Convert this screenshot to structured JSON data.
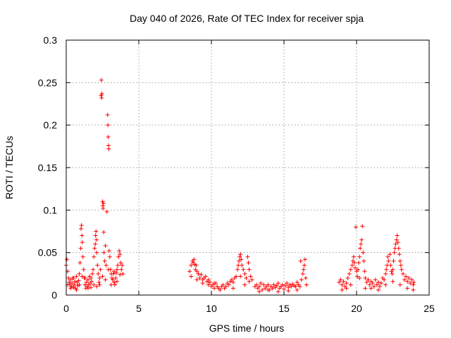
{
  "chart_data": {
    "type": "scatter",
    "title": "Day 040 of 2026, Rate Of TEC Index for receiver spja",
    "xlabel": "GPS time / hours",
    "ylabel": "ROTI / TECUs",
    "xlim": [
      0,
      25
    ],
    "ylim": [
      0,
      0.3
    ],
    "x_ticks": [
      0,
      5,
      10,
      15,
      20,
      25
    ],
    "x_tick_labels": [
      "0",
      "5",
      "10",
      "15",
      "20",
      "25"
    ],
    "y_ticks": [
      0,
      0.05,
      0.1,
      0.15,
      0.2,
      0.25,
      0.3
    ],
    "y_tick_labels": [
      "0",
      "0.05",
      "0.1",
      "0.15",
      "0.2",
      "0.25",
      "0.3"
    ],
    "grid": true,
    "marker": "plus",
    "series": [
      {
        "name": "ROTI",
        "color": "#ff0000",
        "points": [
          [
            0.0,
            0.035
          ],
          [
            0.05,
            0.042
          ],
          [
            0.1,
            0.028
          ],
          [
            0.15,
            0.02
          ],
          [
            0.2,
            0.015
          ],
          [
            0.25,
            0.012
          ],
          [
            0.3,
            0.018
          ],
          [
            0.35,
            0.01
          ],
          [
            0.4,
            0.014
          ],
          [
            0.45,
            0.02
          ],
          [
            0.5,
            0.009
          ],
          [
            0.55,
            0.012
          ],
          [
            0.6,
            0.016
          ],
          [
            0.65,
            0.008
          ],
          [
            0.7,
            0.022
          ],
          [
            0.75,
            0.015
          ],
          [
            0.8,
            0.011
          ],
          [
            0.85,
            0.017
          ],
          [
            0.9,
            0.025
          ],
          [
            0.95,
            0.038
          ],
          [
            1.0,
            0.055
          ],
          [
            1.02,
            0.078
          ],
          [
            1.05,
            0.082
          ],
          [
            1.08,
            0.07
          ],
          [
            1.1,
            0.062
          ],
          [
            1.15,
            0.045
          ],
          [
            1.2,
            0.03
          ],
          [
            1.25,
            0.02
          ],
          [
            1.3,
            0.012
          ],
          [
            1.35,
            0.008
          ],
          [
            1.4,
            0.015
          ],
          [
            1.45,
            0.01
          ],
          [
            1.5,
            0.018
          ],
          [
            1.55,
            0.012
          ],
          [
            1.6,
            0.022
          ],
          [
            1.65,
            0.014
          ],
          [
            1.7,
            0.009
          ],
          [
            1.75,
            0.016
          ],
          [
            1.8,
            0.025
          ],
          [
            1.85,
            0.03
          ],
          [
            1.9,
            0.045
          ],
          [
            1.95,
            0.055
          ],
          [
            2.0,
            0.06
          ],
          [
            2.02,
            0.07
          ],
          [
            2.05,
            0.075
          ],
          [
            2.08,
            0.065
          ],
          [
            2.1,
            0.05
          ],
          [
            2.15,
            0.035
          ],
          [
            2.2,
            0.025
          ],
          [
            2.25,
            0.015
          ],
          [
            2.3,
            0.02
          ],
          [
            2.35,
            0.03
          ],
          [
            2.4,
            0.235
          ],
          [
            2.42,
            0.253
          ],
          [
            2.44,
            0.232
          ],
          [
            2.46,
            0.237
          ],
          [
            2.5,
            0.11
          ],
          [
            2.52,
            0.105
          ],
          [
            2.54,
            0.102
          ],
          [
            2.56,
            0.108
          ],
          [
            2.58,
            0.074
          ],
          [
            2.6,
            0.05
          ],
          [
            2.65,
            0.04
          ],
          [
            2.7,
            0.058
          ],
          [
            2.75,
            0.035
          ],
          [
            2.8,
            0.098
          ],
          [
            2.85,
            0.212
          ],
          [
            2.87,
            0.2
          ],
          [
            2.89,
            0.186
          ],
          [
            2.91,
            0.176
          ],
          [
            2.93,
            0.172
          ],
          [
            2.95,
            0.052
          ],
          [
            3.0,
            0.045
          ],
          [
            3.05,
            0.03
          ],
          [
            3.1,
            0.025
          ],
          [
            3.15,
            0.02
          ],
          [
            3.2,
            0.018
          ],
          [
            3.25,
            0.025
          ],
          [
            3.3,
            0.015
          ],
          [
            3.35,
            0.012
          ],
          [
            3.4,
            0.02
          ],
          [
            3.45,
            0.026
          ],
          [
            3.5,
            0.03
          ],
          [
            3.55,
            0.035
          ],
          [
            3.6,
            0.045
          ],
          [
            3.65,
            0.052
          ],
          [
            3.7,
            0.048
          ],
          [
            3.75,
            0.038
          ],
          [
            3.8,
            0.03
          ],
          [
            3.85,
            0.035
          ],
          [
            3.9,
            0.025
          ],
          [
            0.1,
            0.012
          ],
          [
            0.3,
            0.008
          ],
          [
            0.5,
            0.02
          ],
          [
            0.7,
            0.006
          ],
          [
            0.9,
            0.012
          ],
          [
            1.1,
            0.022
          ],
          [
            1.3,
            0.02
          ],
          [
            1.5,
            0.008
          ],
          [
            1.7,
            0.02
          ],
          [
            1.9,
            0.012
          ],
          [
            2.1,
            0.01
          ],
          [
            2.3,
            0.012
          ],
          [
            2.5,
            0.022
          ],
          [
            2.7,
            0.018
          ],
          [
            2.9,
            0.03
          ],
          [
            3.1,
            0.012
          ],
          [
            3.3,
            0.028
          ],
          [
            3.5,
            0.016
          ],
          [
            3.7,
            0.024
          ],
          [
            8.5,
            0.028
          ],
          [
            8.6,
            0.035
          ],
          [
            8.7,
            0.04
          ],
          [
            8.75,
            0.038
          ],
          [
            8.8,
            0.042
          ],
          [
            8.85,
            0.036
          ],
          [
            8.9,
            0.03
          ],
          [
            8.95,
            0.035
          ],
          [
            9.0,
            0.028
          ],
          [
            9.1,
            0.025
          ],
          [
            9.2,
            0.02
          ],
          [
            9.3,
            0.024
          ],
          [
            9.4,
            0.018
          ],
          [
            9.5,
            0.02
          ],
          [
            9.6,
            0.022
          ],
          [
            9.7,
            0.016
          ],
          [
            9.8,
            0.012
          ],
          [
            9.9,
            0.015
          ],
          [
            10.0,
            0.01
          ],
          [
            10.1,
            0.012
          ],
          [
            10.2,
            0.008
          ],
          [
            10.3,
            0.014
          ],
          [
            10.4,
            0.01
          ],
          [
            10.5,
            0.008
          ],
          [
            10.6,
            0.006
          ],
          [
            10.7,
            0.01
          ],
          [
            10.8,
            0.012
          ],
          [
            10.9,
            0.008
          ],
          [
            11.0,
            0.01
          ],
          [
            11.1,
            0.014
          ],
          [
            11.2,
            0.012
          ],
          [
            11.3,
            0.016
          ],
          [
            11.4,
            0.018
          ],
          [
            11.5,
            0.015
          ],
          [
            11.6,
            0.02
          ],
          [
            11.7,
            0.022
          ],
          [
            11.8,
            0.03
          ],
          [
            11.85,
            0.035
          ],
          [
            11.9,
            0.04
          ],
          [
            11.95,
            0.045
          ],
          [
            12.0,
            0.048
          ],
          [
            12.05,
            0.042
          ],
          [
            12.1,
            0.035
          ],
          [
            12.2,
            0.03
          ],
          [
            12.3,
            0.025
          ],
          [
            12.4,
            0.02
          ],
          [
            12.5,
            0.045
          ],
          [
            12.55,
            0.038
          ],
          [
            12.6,
            0.03
          ],
          [
            12.7,
            0.022
          ],
          [
            12.8,
            0.018
          ],
          [
            8.6,
            0.022
          ],
          [
            9.0,
            0.018
          ],
          [
            9.4,
            0.014
          ],
          [
            9.8,
            0.018
          ],
          [
            10.2,
            0.014
          ],
          [
            11.5,
            0.008
          ],
          [
            12.0,
            0.022
          ],
          [
            12.3,
            0.012
          ],
          [
            12.6,
            0.016
          ],
          [
            13.0,
            0.01
          ],
          [
            13.1,
            0.012
          ],
          [
            13.2,
            0.008
          ],
          [
            13.3,
            0.01
          ],
          [
            13.4,
            0.014
          ],
          [
            13.5,
            0.006
          ],
          [
            13.6,
            0.012
          ],
          [
            13.7,
            0.008
          ],
          [
            13.8,
            0.01
          ],
          [
            13.9,
            0.012
          ],
          [
            14.0,
            0.006
          ],
          [
            14.1,
            0.01
          ],
          [
            14.2,
            0.008
          ],
          [
            14.3,
            0.012
          ],
          [
            14.4,
            0.009
          ],
          [
            14.5,
            0.011
          ],
          [
            14.6,
            0.014
          ],
          [
            14.7,
            0.008
          ],
          [
            14.8,
            0.01
          ],
          [
            14.9,
            0.012
          ],
          [
            15.0,
            0.007
          ],
          [
            15.1,
            0.011
          ],
          [
            15.2,
            0.014
          ],
          [
            15.3,
            0.009
          ],
          [
            15.4,
            0.012
          ],
          [
            15.5,
            0.01
          ],
          [
            15.6,
            0.013
          ],
          [
            15.7,
            0.011
          ],
          [
            15.8,
            0.01
          ],
          [
            15.9,
            0.015
          ],
          [
            16.0,
            0.012
          ],
          [
            16.1,
            0.01
          ],
          [
            16.15,
            0.04
          ],
          [
            16.2,
            0.018
          ],
          [
            16.3,
            0.025
          ],
          [
            16.35,
            0.03
          ],
          [
            16.4,
            0.035
          ],
          [
            16.45,
            0.042
          ],
          [
            16.5,
            0.02
          ],
          [
            16.55,
            0.012
          ],
          [
            13.3,
            0.004
          ],
          [
            13.9,
            0.006
          ],
          [
            14.6,
            0.004
          ],
          [
            15.3,
            0.005
          ],
          [
            15.9,
            0.006
          ],
          [
            18.8,
            0.015
          ],
          [
            18.9,
            0.018
          ],
          [
            19.0,
            0.012
          ],
          [
            19.1,
            0.016
          ],
          [
            19.2,
            0.01
          ],
          [
            19.3,
            0.014
          ],
          [
            19.4,
            0.02
          ],
          [
            19.5,
            0.025
          ],
          [
            19.6,
            0.03
          ],
          [
            19.7,
            0.035
          ],
          [
            19.75,
            0.04
          ],
          [
            19.8,
            0.045
          ],
          [
            19.85,
            0.038
          ],
          [
            19.9,
            0.032
          ],
          [
            19.95,
            0.08
          ],
          [
            20.0,
            0.028
          ],
          [
            20.05,
            0.022
          ],
          [
            20.1,
            0.03
          ],
          [
            20.15,
            0.038
          ],
          [
            20.2,
            0.045
          ],
          [
            20.25,
            0.055
          ],
          [
            20.3,
            0.06
          ],
          [
            20.35,
            0.065
          ],
          [
            20.4,
            0.081
          ],
          [
            20.45,
            0.05
          ],
          [
            20.5,
            0.04
          ],
          [
            20.55,
            0.028
          ],
          [
            20.6,
            0.02
          ],
          [
            20.7,
            0.015
          ],
          [
            20.8,
            0.018
          ],
          [
            20.9,
            0.012
          ],
          [
            21.0,
            0.016
          ],
          [
            21.1,
            0.014
          ],
          [
            21.2,
            0.01
          ],
          [
            21.3,
            0.018
          ],
          [
            21.4,
            0.012
          ],
          [
            21.5,
            0.015
          ],
          [
            21.6,
            0.01
          ],
          [
            21.7,
            0.014
          ],
          [
            21.8,
            0.02
          ],
          [
            21.9,
            0.018
          ],
          [
            22.0,
            0.025
          ],
          [
            22.05,
            0.03
          ],
          [
            22.1,
            0.035
          ],
          [
            22.15,
            0.045
          ],
          [
            22.2,
            0.04
          ],
          [
            22.3,
            0.048
          ],
          [
            22.35,
            0.035
          ],
          [
            22.4,
            0.028
          ],
          [
            22.45,
            0.025
          ],
          [
            22.5,
            0.03
          ],
          [
            22.55,
            0.04
          ],
          [
            22.6,
            0.05
          ],
          [
            22.65,
            0.055
          ],
          [
            22.7,
            0.06
          ],
          [
            22.75,
            0.065
          ],
          [
            22.8,
            0.07
          ],
          [
            22.85,
            0.062
          ],
          [
            22.9,
            0.055
          ],
          [
            22.95,
            0.048
          ],
          [
            23.0,
            0.04
          ],
          [
            23.05,
            0.035
          ],
          [
            23.1,
            0.03
          ],
          [
            23.2,
            0.025
          ],
          [
            23.3,
            0.018
          ],
          [
            23.4,
            0.022
          ],
          [
            23.5,
            0.016
          ],
          [
            23.6,
            0.02
          ],
          [
            23.7,
            0.014
          ],
          [
            23.8,
            0.018
          ],
          [
            23.9,
            0.012
          ],
          [
            23.95,
            0.015
          ],
          [
            19.0,
            0.006
          ],
          [
            19.3,
            0.008
          ],
          [
            19.6,
            0.012
          ],
          [
            20.2,
            0.02
          ],
          [
            20.6,
            0.008
          ],
          [
            21.0,
            0.008
          ],
          [
            21.5,
            0.006
          ],
          [
            22.0,
            0.012
          ],
          [
            22.5,
            0.016
          ],
          [
            23.0,
            0.012
          ],
          [
            23.5,
            0.008
          ],
          [
            23.9,
            0.006
          ]
        ]
      }
    ]
  }
}
